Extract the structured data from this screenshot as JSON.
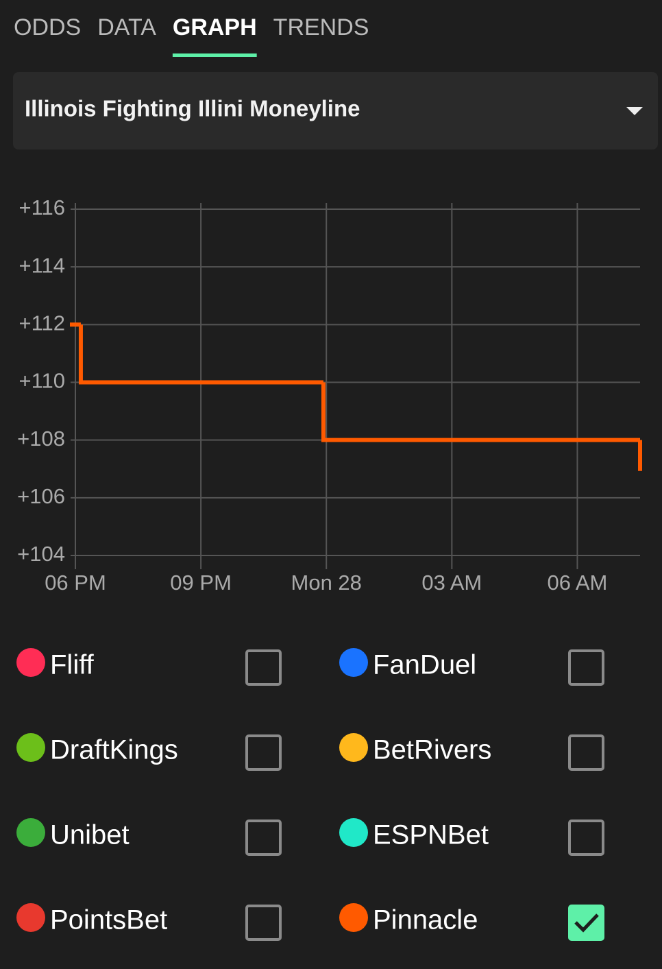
{
  "tabs": [
    "ODDS",
    "DATA",
    "GRAPH",
    "TRENDS"
  ],
  "active_tab": 2,
  "selector": {
    "title": "Illinois Fighting Illini Moneyline"
  },
  "chart_data": {
    "type": "step-line",
    "x": [
      0,
      0.13,
      5.93,
      13.5
    ],
    "values": [
      112,
      110,
      108,
      107
    ],
    "color": "#ff5a00",
    "xlim": [
      0,
      13.5
    ],
    "xticks": [
      {
        "value": 0,
        "label": "06 PM"
      },
      {
        "value": 3,
        "label": "09 PM"
      },
      {
        "value": 6,
        "label": "Mon 28"
      },
      {
        "value": 9,
        "label": "03 AM"
      },
      {
        "value": 12,
        "label": "06 AM"
      }
    ],
    "ylim": [
      104,
      116
    ],
    "yticks": [
      {
        "value": 104,
        "label": "+104"
      },
      {
        "value": 106,
        "label": "+106"
      },
      {
        "value": 108,
        "label": "+108"
      },
      {
        "value": 110,
        "label": "+110"
      },
      {
        "value": 112,
        "label": "+112"
      },
      {
        "value": 114,
        "label": "+114"
      },
      {
        "value": 116,
        "label": "+116"
      }
    ],
    "grid": true
  },
  "books": [
    {
      "name": "Fliff",
      "color": "#ff2d55",
      "checked": false
    },
    {
      "name": "FanDuel",
      "color": "#1a73ff",
      "checked": false
    },
    {
      "name": "DraftKings",
      "color": "#6cbf1a",
      "checked": false
    },
    {
      "name": "BetRivers",
      "color": "#ffb81c",
      "checked": false
    },
    {
      "name": "Unibet",
      "color": "#3bad3b",
      "checked": false
    },
    {
      "name": "ESPNBet",
      "color": "#20e8c8",
      "checked": false
    },
    {
      "name": "PointsBet",
      "color": "#e8392e",
      "checked": false
    },
    {
      "name": "Pinnacle",
      "color": "#ff5a00",
      "checked": true
    }
  ]
}
